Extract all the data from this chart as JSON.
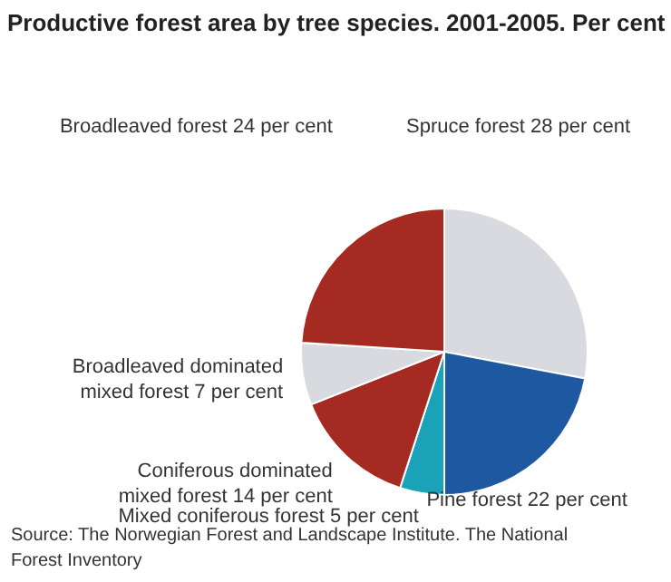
{
  "chart_data": {
    "type": "pie",
    "title": "Productive forest area by tree species. 2001-2005. Per cent",
    "categories": [
      "Spruce forest",
      "Pine forest",
      "Mixed coniferous forest",
      "Coniferous dominated mixed forest",
      "Broadleaved dominated mixed forest",
      "Broadleaved forest"
    ],
    "values": [
      28,
      22,
      5,
      14,
      7,
      24
    ],
    "value_labels": [
      "28 per cent",
      "22 per cent",
      "5 per cent",
      "14 per cent",
      "7 per cent",
      "24 per cent"
    ],
    "colors": [
      "#d9dadf",
      "#1d58a0",
      "#1aa3b8",
      "#a52a22",
      "#d9dadf",
      "#a52a22"
    ],
    "annotations": [
      "Source: The Norwegian Forest and Landscape Institute. The National Forest Inventory"
    ]
  }
}
